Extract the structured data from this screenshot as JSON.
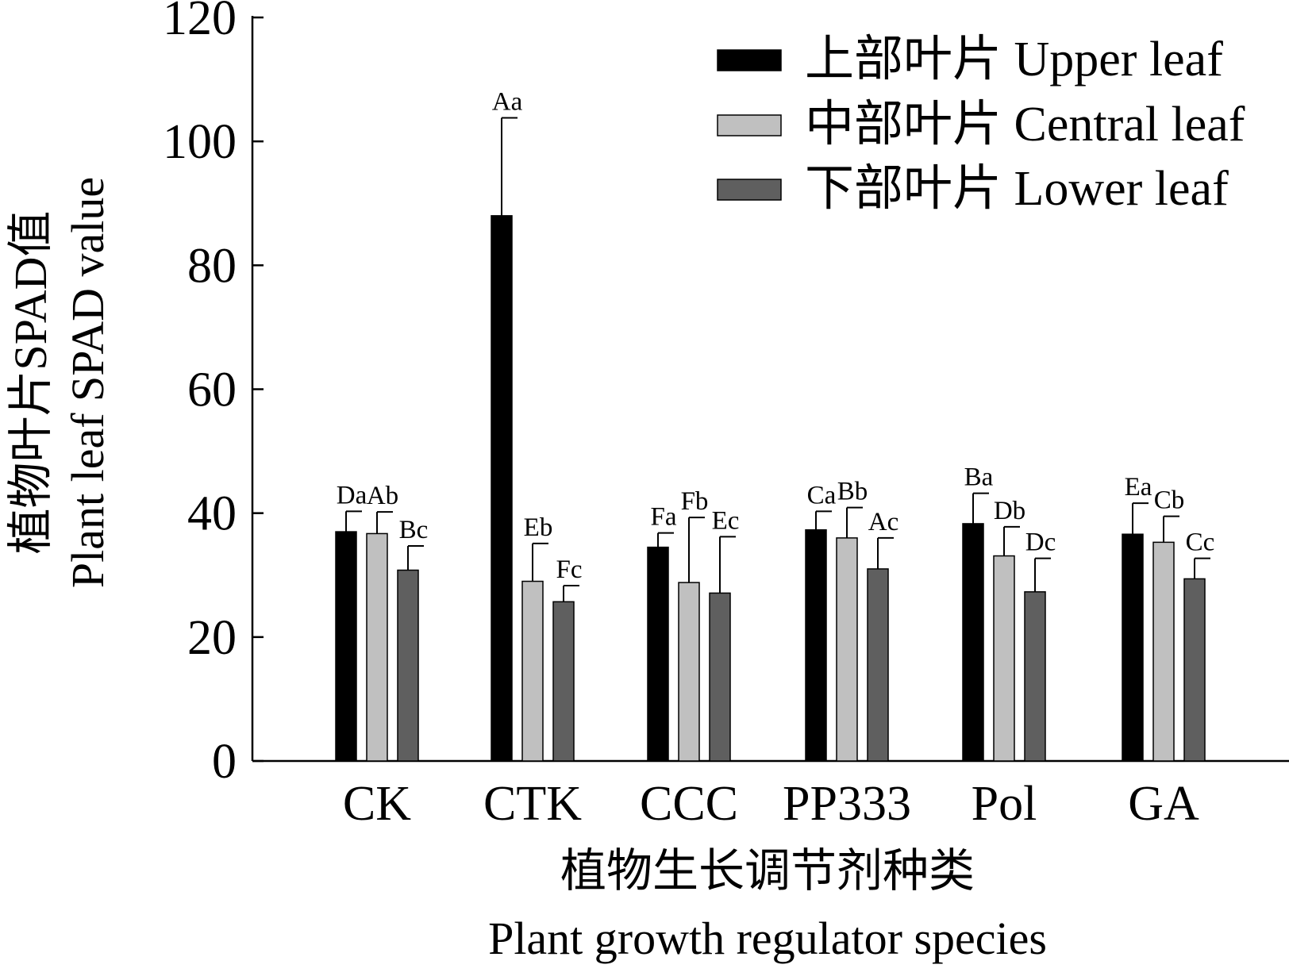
{
  "chart_data": {
    "type": "bar",
    "xlabel_cn": "植物生长调节剂种类",
    "xlabel_en": "Plant growth regulator species",
    "ylabel_cn": "植物叶片SPAD值",
    "ylabel_en": "Plant leaf SPAD value",
    "ylim": [
      0,
      120
    ],
    "yticks": [
      0,
      20,
      40,
      60,
      80,
      100,
      120
    ],
    "categories": [
      "CK",
      "CTK",
      "CCC",
      "PP333",
      "Pol",
      "GA"
    ],
    "legend_position": "top-right",
    "series": [
      {
        "name": "上部叶片 Upper leaf",
        "color": "#000000",
        "values": [
          37.0,
          88.0,
          34.5,
          37.3,
          38.3,
          36.6
        ],
        "errors": [
          3.3,
          15.8,
          2.3,
          3.0,
          4.9,
          5.0
        ],
        "labels": [
          "Da",
          "Aa",
          "Fa",
          "Ca",
          "Ba",
          "Ea"
        ]
      },
      {
        "name": "中部叶片 Central leaf",
        "color": "#c0c0c0",
        "values": [
          36.7,
          29.0,
          28.8,
          36.0,
          33.1,
          35.3
        ],
        "errors": [
          3.5,
          6.1,
          10.5,
          4.9,
          4.7,
          4.2
        ],
        "labels": [
          "Ab",
          "Eb",
          "Fb",
          "Bb",
          "Db",
          "Cb"
        ]
      },
      {
        "name": "下部叶片 Lower leaf",
        "color": "#5f5f5f",
        "values": [
          30.8,
          25.7,
          27.1,
          31.0,
          27.3,
          29.4
        ],
        "errors": [
          3.9,
          2.6,
          9.1,
          5.0,
          5.4,
          3.3
        ],
        "labels": [
          "Bc",
          "Fc",
          "Ec",
          "Ac",
          "Dc",
          "Cc"
        ]
      }
    ]
  }
}
